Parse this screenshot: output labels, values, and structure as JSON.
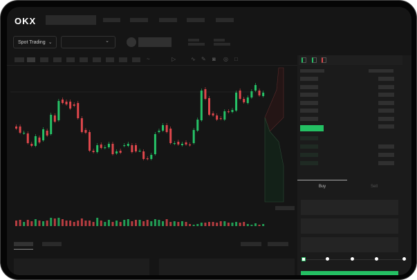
{
  "header": {
    "logo": "OKX"
  },
  "toolbar": {
    "market_dropdown": "Spot Trading",
    "chevron": "⌄"
  },
  "order_form": {
    "tabs": [
      {
        "label": "Buy",
        "active": true
      },
      {
        "label": "Sell",
        "active": false
      }
    ],
    "slider_percent": 0
  },
  "colors": {
    "up": "#26c267",
    "down": "#e0474c",
    "accent": "#24c063",
    "background": "#151515"
  },
  "icons": [
    "indicator-icon",
    "chart-type-icon",
    "line-icon",
    "draw-icon",
    "camera-icon",
    "settings-icon",
    "fullscreen-icon",
    "orderbook-both-icon",
    "orderbook-buy-icon",
    "orderbook-sell-icon"
  ],
  "chart_data": {
    "type": "candlestick",
    "candles": [
      [
        68,
        65
      ],
      [
        68,
        59
      ],
      [
        58,
        59
      ],
      [
        58,
        44
      ],
      [
        43,
        40
      ],
      [
        40,
        54
      ],
      [
        52,
        45
      ],
      [
        48,
        64
      ],
      [
        62,
        55
      ],
      [
        57,
        85
      ],
      [
        84,
        75
      ],
      [
        77,
        105
      ],
      [
        107,
        102
      ],
      [
        104,
        100
      ],
      [
        104,
        94
      ],
      [
        100,
        98
      ],
      [
        102,
        80
      ],
      [
        80,
        60
      ],
      [
        63,
        59
      ],
      [
        60,
        33
      ],
      [
        33,
        31
      ],
      [
        31,
        41
      ],
      [
        42,
        37
      ],
      [
        37,
        38
      ],
      [
        38,
        43
      ],
      [
        43,
        28
      ],
      [
        29,
        32
      ],
      [
        33,
        30
      ],
      [
        40,
        41
      ],
      [
        40,
        43
      ],
      [
        41,
        31
      ],
      [
        41,
        32
      ],
      [
        33,
        33
      ],
      [
        32,
        21
      ],
      [
        22,
        21
      ],
      [
        21,
        27
      ],
      [
        28,
        57
      ],
      [
        60,
        62
      ],
      [
        62,
        70
      ],
      [
        70,
        60
      ],
      [
        65,
        44
      ],
      [
        43,
        44
      ],
      [
        46,
        42
      ],
      [
        41,
        43
      ],
      [
        45,
        42
      ],
      [
        42,
        41
      ],
      [
        44,
        63
      ],
      [
        62,
        78
      ],
      [
        77,
        120
      ],
      [
        122,
        108
      ],
      [
        109,
        85
      ],
      [
        87,
        84
      ],
      [
        84,
        78
      ],
      [
        80,
        79
      ],
      [
        78,
        90
      ],
      [
        90,
        89
      ],
      [
        89,
        92
      ],
      [
        91,
        117
      ],
      [
        120,
        108
      ],
      [
        108,
        103
      ],
      [
        102,
        110
      ],
      [
        110,
        119
      ],
      [
        120,
        128
      ],
      [
        120,
        113
      ],
      [
        112,
        117
      ]
    ],
    "volumes": [
      8,
      9,
      6,
      9,
      7,
      10,
      8,
      7,
      8,
      12,
      11,
      12,
      10,
      8,
      8,
      6,
      8,
      11,
      8,
      8,
      6,
      12,
      8,
      6,
      9,
      6,
      8,
      6,
      9,
      10,
      7,
      9,
      9,
      7,
      9,
      7,
      10,
      9,
      7,
      10,
      6,
      7,
      6,
      7,
      6,
      3,
      2,
      3,
      5,
      5,
      6,
      6,
      5,
      7,
      7,
      5,
      5,
      6,
      5,
      6,
      3,
      2,
      4,
      2,
      3
    ]
  }
}
